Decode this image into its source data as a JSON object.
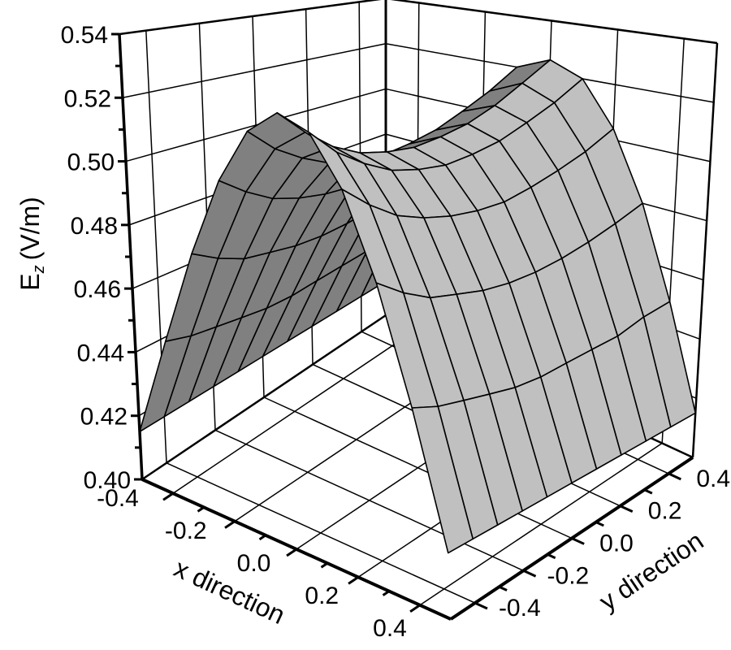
{
  "chart_data": {
    "type": "surface",
    "xlabel": "x direction",
    "ylabel": "y direction",
    "zlabel": {
      "main": "E",
      "sub": "z",
      "unit": "(V/m)"
    },
    "zlim": [
      0.4,
      0.54
    ],
    "xlim": [
      -0.5,
      0.5
    ],
    "ylim": [
      -0.5,
      0.5
    ],
    "grid": true,
    "x_ticks": [
      "-0.4",
      "-0.2",
      "0.0",
      "0.2",
      "0.4"
    ],
    "y_ticks": [
      "-0.4",
      "-0.2",
      "0.0",
      "0.2",
      "0.4"
    ],
    "z_ticks": [
      "0.40",
      "0.42",
      "0.44",
      "0.46",
      "0.48",
      "0.50",
      "0.52",
      "0.54"
    ],
    "colors": {
      "surface_shadow": "#808080",
      "surface_lit": "#c0c0c0",
      "mesh": "#000000"
    },
    "x": [
      -0.5,
      -0.4,
      -0.3,
      -0.2,
      -0.1,
      0.0,
      0.1,
      0.2,
      0.3,
      0.4,
      0.5
    ],
    "y": [
      -0.5,
      -0.4,
      -0.3,
      -0.2,
      -0.1,
      0.0,
      0.1,
      0.2,
      0.3,
      0.4,
      0.5
    ],
    "z_by_y_row": [
      [
        0.415,
        0.446,
        0.474,
        0.496,
        0.51,
        0.515,
        0.51,
        0.496,
        0.474,
        0.446,
        0.415
      ],
      [
        0.415,
        0.444,
        0.47,
        0.491,
        0.504,
        0.509,
        0.504,
        0.491,
        0.47,
        0.444,
        0.415
      ],
      [
        0.415,
        0.443,
        0.467,
        0.487,
        0.5,
        0.504,
        0.5,
        0.487,
        0.467,
        0.443,
        0.415
      ],
      [
        0.415,
        0.442,
        0.466,
        0.485,
        0.497,
        0.501,
        0.497,
        0.485,
        0.466,
        0.442,
        0.415
      ],
      [
        0.415,
        0.441,
        0.465,
        0.484,
        0.496,
        0.5,
        0.496,
        0.484,
        0.465,
        0.441,
        0.415
      ],
      [
        0.415,
        0.441,
        0.465,
        0.484,
        0.496,
        0.5,
        0.496,
        0.484,
        0.465,
        0.441,
        0.415
      ],
      [
        0.415,
        0.442,
        0.466,
        0.485,
        0.498,
        0.502,
        0.498,
        0.485,
        0.466,
        0.442,
        0.415
      ],
      [
        0.415,
        0.443,
        0.468,
        0.488,
        0.501,
        0.505,
        0.501,
        0.488,
        0.468,
        0.443,
        0.415
      ],
      [
        0.415,
        0.444,
        0.471,
        0.492,
        0.506,
        0.51,
        0.506,
        0.492,
        0.471,
        0.444,
        0.415
      ],
      [
        0.415,
        0.447,
        0.475,
        0.497,
        0.512,
        0.517,
        0.512,
        0.497,
        0.475,
        0.447,
        0.415
      ],
      [
        0.415,
        0.449,
        0.48,
        0.504,
        0.52,
        0.525,
        0.52,
        0.504,
        0.48,
        0.449,
        0.415
      ]
    ]
  }
}
